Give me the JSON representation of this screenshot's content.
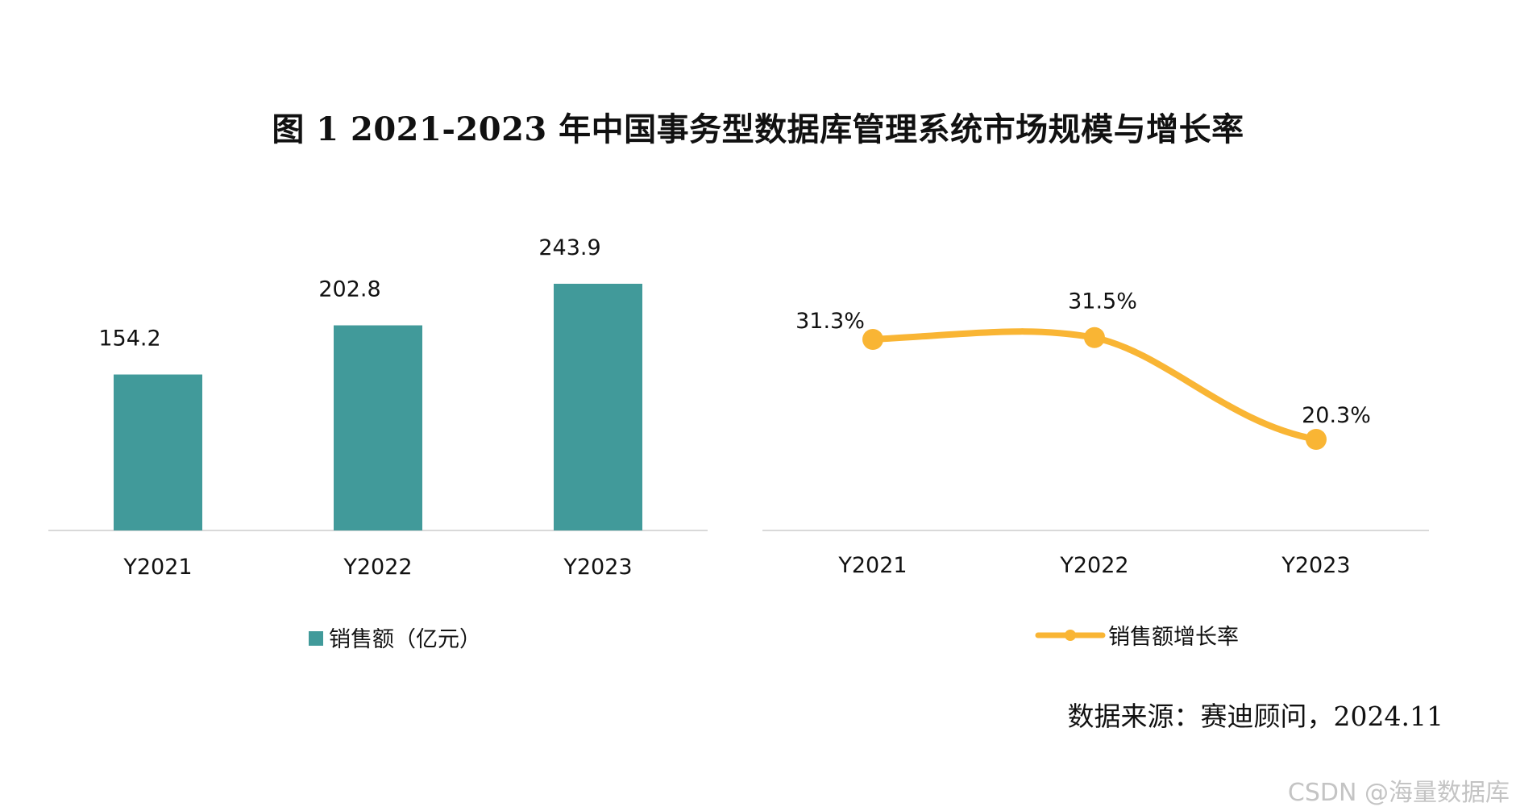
{
  "figure": {
    "title": "图  1    2021-2023 年中国事务型数据库管理系统市场规模与增长率",
    "source": "数据来源：赛迪顾问，2024.11",
    "watermark": "CSDN @海量数据库"
  },
  "colors": {
    "bar": "#419a9a",
    "line": "#f9b534",
    "axis": "#d9d9d9"
  },
  "chart_data": [
    {
      "type": "bar",
      "categories": [
        "Y2021",
        "Y2022",
        "Y2023"
      ],
      "series": [
        {
          "name": "销售额（亿元）",
          "values": [
            154.2,
            202.8,
            243.9
          ],
          "labels": [
            "154.2",
            "202.8",
            "243.9"
          ]
        }
      ],
      "title": "",
      "xlabel": "",
      "ylabel": "",
      "ylim": [
        0,
        243.9
      ],
      "grid": false,
      "legend": "bottom-center"
    },
    {
      "type": "line",
      "categories": [
        "Y2021",
        "Y2022",
        "Y2023"
      ],
      "series": [
        {
          "name": "销售额增长率",
          "values": [
            31.3,
            31.5,
            20.3
          ],
          "labels": [
            "31.3%",
            "31.5%",
            "20.3%"
          ]
        }
      ],
      "title": "",
      "xlabel": "",
      "ylabel": "",
      "ylim": [
        0,
        33
      ],
      "grid": false,
      "smooth": true,
      "legend": "bottom-center"
    }
  ]
}
